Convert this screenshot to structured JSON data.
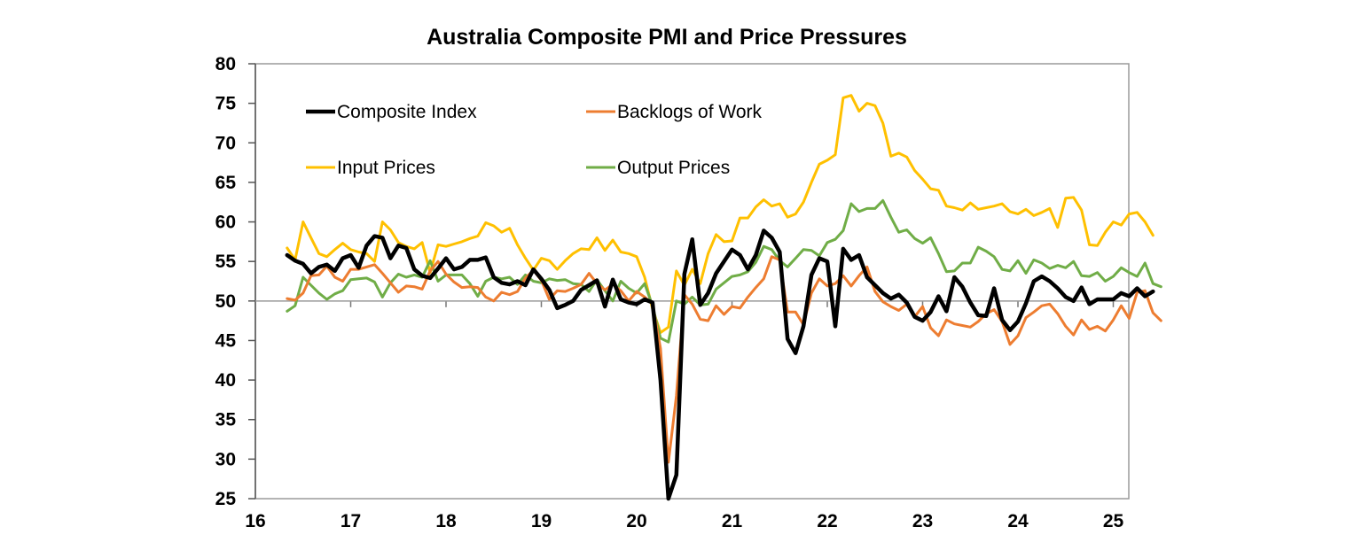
{
  "chart_data": {
    "type": "line",
    "title": "Australia Composite PMI and Price Pressures",
    "xlabel": "",
    "ylabel": "",
    "ylim": [
      25,
      80
    ],
    "yticks": [
      "25",
      "30",
      "35",
      "40",
      "45",
      "50",
      "55",
      "60",
      "65",
      "70",
      "75",
      "80"
    ],
    "xticks": [
      "16",
      "17",
      "18",
      "19",
      "20",
      "21",
      "22",
      "23",
      "24",
      "25"
    ],
    "xlim": [
      2016,
      2025.5
    ],
    "reference_line": 50,
    "grid": false,
    "legend_position": "top-left inside",
    "start": "2016-05",
    "frequency": "monthly",
    "series": [
      {
        "name": "Composite Index",
        "color": "#000000",
        "values": [
          55.8,
          55.1,
          54.7,
          53.5,
          54.3,
          54.6,
          53.8,
          55.4,
          55.8,
          54.2,
          57.0,
          58.2,
          58.0,
          55.4,
          57.0,
          56.7,
          54.0,
          53.2,
          52.9,
          54.1,
          55.4,
          54.0,
          54.3,
          55.2,
          55.2,
          55.5,
          53.0,
          52.3,
          52.1,
          52.5,
          52.0,
          54.0,
          52.8,
          51.4,
          49.1,
          49.5,
          50.0,
          51.4,
          52.0,
          52.6,
          49.3,
          52.7,
          50.2,
          49.8,
          49.6,
          50.2,
          49.8,
          40.0,
          24.8,
          28.0,
          53.4,
          57.8,
          49.5,
          51.0,
          53.5,
          55.0,
          56.5,
          55.8,
          54.0,
          55.8,
          58.9,
          58.0,
          56.2,
          45.2,
          43.4,
          46.8,
          53.3,
          55.4,
          55.0,
          46.8,
          56.6,
          55.2,
          55.8,
          53.0,
          52.0,
          51.0,
          50.3,
          50.8,
          49.8,
          48.0,
          47.5,
          48.6,
          50.6,
          48.7,
          53.0,
          51.8,
          49.8,
          48.2,
          48.1,
          51.6,
          47.6,
          46.3,
          47.4,
          49.7,
          52.5,
          53.1,
          52.5,
          51.6,
          50.5,
          50.0,
          51.7,
          49.6,
          50.2,
          50.2,
          50.2,
          51.0,
          50.6,
          51.6,
          50.6,
          51.2
        ]
      },
      {
        "name": "Backlogs of Work",
        "color": "#ED7D31",
        "values": [
          50.3,
          50.1,
          51.0,
          53.2,
          53.3,
          54.4,
          53.0,
          52.5,
          54.0,
          54.0,
          54.3,
          54.6,
          53.5,
          52.3,
          51.1,
          51.9,
          51.8,
          51.5,
          53.8,
          55.0,
          53.4,
          52.4,
          51.7,
          51.8,
          51.7,
          50.5,
          50.0,
          51.1,
          50.8,
          51.2,
          52.9,
          53.9,
          52.6,
          50.2,
          51.3,
          51.2,
          51.6,
          52.1,
          53.5,
          52.2,
          51.4,
          52.1,
          51.3,
          50.0,
          51.2,
          50.5,
          49.6,
          44.0,
          29.6,
          38.0,
          50.8,
          49.6,
          47.7,
          47.5,
          49.4,
          48.3,
          49.3,
          49.1,
          50.5,
          51.7,
          52.8,
          55.6,
          55.2,
          48.6,
          48.6,
          47.0,
          51.0,
          52.8,
          51.9,
          52.2,
          53.2,
          51.9,
          53.2,
          54.3,
          51.2,
          49.9,
          49.3,
          48.8,
          49.6,
          48.0,
          49.3,
          46.6,
          45.6,
          47.6,
          47.1,
          46.9,
          46.7,
          47.4,
          48.4,
          48.9,
          47.4,
          44.5,
          45.6,
          47.9,
          48.6,
          49.4,
          49.6,
          48.4,
          46.8,
          45.7,
          47.6,
          46.4,
          46.8,
          46.2,
          47.6,
          49.4,
          47.8,
          51.1,
          51.3,
          48.5,
          47.5
        ]
      },
      {
        "name": "Input Prices",
        "color": "#FFC000",
        "values": [
          56.7,
          55.2,
          60.0,
          58.0,
          56.0,
          55.6,
          56.5,
          57.3,
          56.5,
          56.2,
          56.0,
          55.0,
          60.0,
          59.0,
          57.4,
          56.9,
          56.6,
          57.4,
          53.6,
          57.1,
          56.9,
          57.2,
          57.5,
          57.9,
          58.2,
          59.9,
          59.5,
          58.7,
          59.2,
          57.1,
          55.4,
          53.9,
          55.4,
          55.1,
          54.0,
          55.1,
          56.0,
          56.6,
          56.5,
          58.0,
          56.4,
          57.7,
          56.2,
          56.0,
          55.6,
          53.0,
          49.0,
          46.0,
          46.7,
          53.8,
          52.0,
          54.0,
          52.2,
          56.0,
          58.4,
          57.5,
          57.6,
          60.5,
          60.5,
          61.9,
          62.8,
          62.0,
          62.3,
          60.6,
          61.0,
          62.5,
          65.0,
          67.3,
          67.8,
          68.5,
          75.7,
          76.0,
          74.0,
          75.0,
          74.7,
          72.5,
          68.3,
          68.7,
          68.2,
          66.5,
          65.4,
          64.2,
          64.0,
          62.0,
          61.8,
          61.5,
          62.4,
          61.6,
          61.8,
          62.0,
          62.3,
          61.3,
          61.0,
          61.6,
          60.8,
          61.2,
          61.7,
          59.3,
          63.0,
          63.1,
          61.5,
          57.1,
          57.0,
          58.7,
          60.0,
          59.6,
          61.0,
          61.2,
          60.0,
          58.3
        ]
      },
      {
        "name": "Output Prices",
        "color": "#70AD47",
        "values": [
          48.7,
          49.4,
          53.0,
          52.0,
          51.0,
          50.2,
          50.9,
          51.3,
          52.7,
          52.8,
          52.9,
          52.4,
          50.5,
          52.3,
          53.4,
          53.0,
          53.3,
          53.0,
          55.1,
          52.5,
          53.3,
          53.3,
          53.3,
          52.2,
          50.6,
          52.5,
          53.0,
          52.8,
          53.0,
          52.1,
          53.3,
          52.5,
          52.3,
          52.8,
          52.6,
          52.7,
          52.2,
          52.1,
          51.2,
          52.7,
          51.3,
          50.0,
          52.5,
          51.6,
          51.0,
          52.2,
          49.4,
          45.3,
          44.8,
          50.0,
          49.6,
          50.5,
          49.5,
          49.6,
          51.5,
          52.3,
          53.1,
          53.3,
          53.7,
          54.9,
          56.9,
          56.5,
          55.1,
          54.3,
          55.4,
          56.5,
          56.4,
          55.7,
          57.4,
          57.8,
          58.9,
          62.3,
          61.3,
          61.7,
          61.7,
          62.7,
          60.6,
          58.7,
          59.0,
          57.9,
          57.3,
          58.0,
          56.0,
          53.7,
          53.8,
          54.8,
          54.8,
          56.8,
          56.3,
          55.6,
          54.0,
          53.8,
          55.1,
          53.5,
          55.2,
          54.8,
          54.1,
          54.5,
          54.2,
          55.0,
          53.2,
          53.1,
          53.6,
          52.5,
          53.1,
          54.2,
          53.6,
          53.1,
          54.8,
          52.2,
          51.8
        ]
      }
    ]
  }
}
